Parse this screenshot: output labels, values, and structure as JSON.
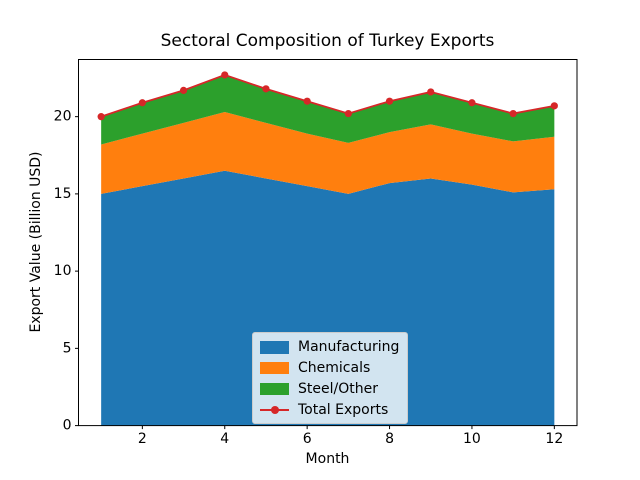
{
  "chart_data": {
    "type": "area",
    "stacked": true,
    "title": "Sectoral Composition of Turkey Exports",
    "xlabel": "Month",
    "ylabel": "Export Value (Billion USD)",
    "x": [
      1,
      2,
      3,
      4,
      5,
      6,
      7,
      8,
      9,
      10,
      11,
      12
    ],
    "series": [
      {
        "name": "Manufacturing",
        "type": "area",
        "color": "#1f77b4",
        "values": [
          15.0,
          15.5,
          16.0,
          16.5,
          16.0,
          15.5,
          15.0,
          15.7,
          16.0,
          15.6,
          15.1,
          15.3
        ]
      },
      {
        "name": "Chemicals",
        "type": "area",
        "color": "#ff7f0e",
        "values": [
          3.2,
          3.4,
          3.6,
          3.8,
          3.6,
          3.4,
          3.3,
          3.3,
          3.5,
          3.3,
          3.3,
          3.4
        ]
      },
      {
        "name": "Steel/Other",
        "type": "area",
        "color": "#2ca02c",
        "values": [
          1.8,
          2.0,
          2.1,
          2.4,
          2.2,
          2.1,
          1.9,
          2.0,
          2.1,
          2.0,
          1.8,
          2.0
        ]
      },
      {
        "name": "Total Exports",
        "type": "line",
        "color": "#d62728",
        "values": [
          20.0,
          20.9,
          21.7,
          22.7,
          21.8,
          21.0,
          20.2,
          21.0,
          21.6,
          20.9,
          20.2,
          20.7
        ]
      }
    ],
    "xticks": [
      2,
      4,
      6,
      8,
      10,
      12
    ],
    "yticks": [
      0,
      5,
      10,
      15,
      20
    ],
    "xlim": [
      0.45,
      12.55
    ],
    "ylim": [
      0,
      23.7
    ],
    "grid": false,
    "legend": {
      "position": "lower center",
      "entries": [
        "Manufacturing",
        "Chemicals",
        "Steel/Other",
        "Total Exports"
      ]
    }
  }
}
